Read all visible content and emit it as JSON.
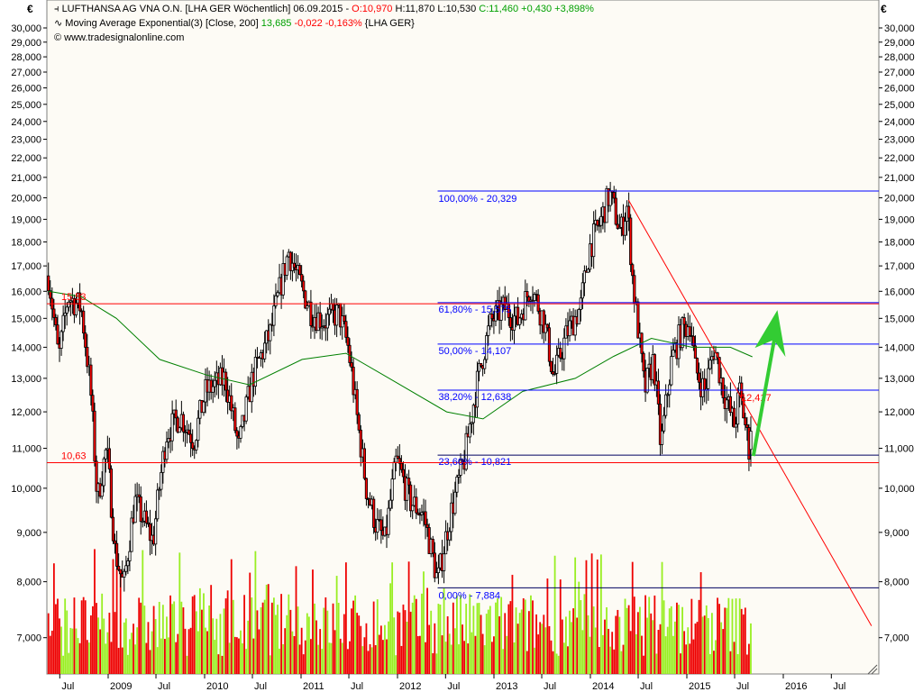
{
  "header": {
    "instrument_line": {
      "icon": "candlestick-icon",
      "name": "LUFTHANSA AG VNA O.N. [LHA GER  Wöchentlich]",
      "date": "06.09.2015 -",
      "open": "O:10,970",
      "high": "H:11,870",
      "low": "L:10,530",
      "close_change": "C:11,460 +0,430 +3,898%"
    },
    "indicator_line": {
      "icon": "wave-icon",
      "name": "Moving Average Exponential(3) [Close, 200]",
      "value": "13,685",
      "change": "-0,022 -0,163%",
      "symbol": "{LHA GER}"
    },
    "copyright": "© www.tradesignalonline.com"
  },
  "currency_symbol": "€",
  "colors": {
    "plot_bg": "#fdfbf5",
    "up_candle": "#ffffff",
    "down_candle": "#ff0000",
    "ema": "#008000",
    "fib": "#0000ff",
    "trend": "#ff0000",
    "arrow": "#33cc33",
    "vol_up": "#99ee22",
    "vol_down": "#ee0000"
  },
  "chart_data": {
    "type": "candlestick",
    "title": "LUFTHANSA AG VNA O.N. [LHA GER  Wöchentlich]",
    "y_scale": "log",
    "ylim": [
      6.3,
      31.5
    ],
    "y_ticks": [
      "30,000",
      "29,000",
      "28,000",
      "27,000",
      "26,000",
      "25,000",
      "24,000",
      "23,000",
      "22,000",
      "21,000",
      "20,000",
      "19,000",
      "18,000",
      "17,000",
      "16,000",
      "15,000",
      "14,000",
      "13,000",
      "12,000",
      "11,000",
      "10,000",
      "9,000",
      "8,000",
      "7,000"
    ],
    "y_tick_values": [
      30,
      29,
      28,
      27,
      26,
      25,
      24,
      23,
      22,
      21,
      20,
      19,
      18,
      17,
      16,
      15,
      14,
      13,
      12,
      11,
      10,
      9,
      8,
      7
    ],
    "x_ticks": [
      {
        "label": "Jul",
        "date": "2008-07-01"
      },
      {
        "label": "2009",
        "date": "2009-01-01"
      },
      {
        "label": "Jul",
        "date": "2009-07-01"
      },
      {
        "label": "2010",
        "date": "2010-01-01"
      },
      {
        "label": "Jul",
        "date": "2010-07-01"
      },
      {
        "label": "2011",
        "date": "2011-01-01"
      },
      {
        "label": "Jul",
        "date": "2011-07-01"
      },
      {
        "label": "2012",
        "date": "2012-01-01"
      },
      {
        "label": "Jul",
        "date": "2012-07-01"
      },
      {
        "label": "2013",
        "date": "2013-01-01"
      },
      {
        "label": "Jul",
        "date": "2013-07-01"
      },
      {
        "label": "2014",
        "date": "2014-01-01"
      },
      {
        "label": "Jul",
        "date": "2014-07-01"
      },
      {
        "label": "2015",
        "date": "2015-01-01"
      },
      {
        "label": "Jul",
        "date": "2015-07-01"
      },
      {
        "label": "2016",
        "date": "2016-01-01"
      },
      {
        "label": "Jul",
        "date": "2016-07-01"
      }
    ],
    "x_range": [
      "2008-05-15",
      "2016-11-30"
    ],
    "approx_weekly_close_path": [
      [
        "2008-05-19",
        16.6
      ],
      [
        "2008-06-27",
        13.6
      ],
      [
        "2008-08-01",
        15.8
      ],
      [
        "2008-09-20",
        15.4
      ],
      [
        "2008-10-25",
        12.7
      ],
      [
        "2008-11-20",
        9.7
      ],
      [
        "2008-12-25",
        11.0
      ],
      [
        "2009-01-27",
        8.6
      ],
      [
        "2009-03-01",
        7.9
      ],
      [
        "2009-04-12",
        9.7
      ],
      [
        "2009-06-20",
        8.8
      ],
      [
        "2009-08-10",
        11.4
      ],
      [
        "2009-10-01",
        11.9
      ],
      [
        "2009-11-22",
        11.2
      ],
      [
        "2010-01-05",
        12.6
      ],
      [
        "2010-03-20",
        13.0
      ],
      [
        "2010-05-10",
        11.0
      ],
      [
        "2010-07-01",
        13.0
      ],
      [
        "2010-09-08",
        14.5
      ],
      [
        "2010-11-15",
        17.6
      ],
      [
        "2010-12-20",
        16.5
      ],
      [
        "2011-02-10",
        15.2
      ],
      [
        "2011-04-01",
        14.9
      ],
      [
        "2011-05-25",
        15.2
      ],
      [
        "2011-06-28",
        14.0
      ],
      [
        "2011-08-05",
        11.6
      ],
      [
        "2011-09-05",
        10.0
      ],
      [
        "2011-10-10",
        9.2
      ],
      [
        "2011-11-15",
        8.8
      ],
      [
        "2011-12-28",
        10.7
      ],
      [
        "2012-02-17",
        9.7
      ],
      [
        "2012-04-08",
        9.4
      ],
      [
        "2012-06-01",
        8.0
      ],
      [
        "2012-07-20",
        9.4
      ],
      [
        "2012-09-10",
        10.7
      ],
      [
        "2012-11-01",
        13.0
      ],
      [
        "2012-12-20",
        14.9
      ],
      [
        "2013-02-10",
        15.4
      ],
      [
        "2013-04-01",
        14.9
      ],
      [
        "2013-05-20",
        16.2
      ],
      [
        "2013-07-10",
        14.9
      ],
      [
        "2013-08-15",
        13.0
      ],
      [
        "2013-10-05",
        14.5
      ],
      [
        "2013-11-25",
        15.4
      ],
      [
        "2013-12-30",
        17.8
      ],
      [
        "2014-02-05",
        18.8
      ],
      [
        "2014-03-15",
        20.2
      ],
      [
        "2014-04-25",
        18.4
      ],
      [
        "2014-05-20",
        19.6
      ],
      [
        "2014-06-12",
        16.2
      ],
      [
        "2014-07-25",
        12.6
      ],
      [
        "2014-08-28",
        13.6
      ],
      [
        "2014-09-25",
        11.0
      ],
      [
        "2014-11-05",
        13.6
      ],
      [
        "2014-12-10",
        14.5
      ],
      [
        "2015-01-15",
        14.9
      ],
      [
        "2015-02-01",
        13.3
      ],
      [
        "2015-03-10",
        12.6
      ],
      [
        "2015-04-15",
        14.0
      ],
      [
        "2015-05-20",
        12.6
      ],
      [
        "2015-07-01",
        11.6
      ],
      [
        "2015-07-20",
        12.6
      ],
      [
        "2015-08-25",
        10.97
      ],
      [
        "2015-09-06",
        11.46
      ]
    ],
    "ema_200": {
      "name": "Moving Average Exponential(3) [Close, 200]",
      "approx_path": [
        [
          "2008-05-19",
          16.0
        ],
        [
          "2008-09-20",
          15.8
        ],
        [
          "2009-02-01",
          15.0
        ],
        [
          "2009-07-15",
          13.6
        ],
        [
          "2010-01-10",
          13.1
        ],
        [
          "2010-06-20",
          12.8
        ],
        [
          "2011-01-05",
          13.6
        ],
        [
          "2011-06-20",
          13.8
        ],
        [
          "2011-12-01",
          13.0
        ],
        [
          "2012-07-05",
          12.0
        ],
        [
          "2012-11-20",
          11.8
        ],
        [
          "2013-04-20",
          12.6
        ],
        [
          "2013-11-05",
          13.0
        ],
        [
          "2014-03-30",
          13.7
        ],
        [
          "2014-08-20",
          14.3
        ],
        [
          "2015-01-20",
          14.0
        ],
        [
          "2015-06-15",
          14.0
        ],
        [
          "2015-09-06",
          13.685
        ]
      ]
    },
    "horizontal_levels": [
      {
        "label": "15,53",
        "value": 15.53,
        "color": "#ff0000"
      },
      {
        "label": "10,63",
        "value": 10.63,
        "color": "#ff0000"
      }
    ],
    "fibonacci": {
      "start_date": "2012-06-01",
      "levels": [
        {
          "label": "100,00% - 20,329",
          "value": 20.329
        },
        {
          "label": "61,80% - 15,575",
          "value": 15.575
        },
        {
          "label": "50,00% - 14,107",
          "value": 14.107
        },
        {
          "label": "38,20% - 12,638",
          "value": 12.638
        },
        {
          "label": "23,60% - 10,821",
          "value": 10.821
        },
        {
          "label": "0,00% - 7,884",
          "value": 7.884
        }
      ]
    },
    "trendline": {
      "from": [
        "2014-05-25",
        19.9
      ],
      "to": [
        "2016-11-30",
        7.2
      ],
      "label": "12,417",
      "label_value": 12.417
    },
    "arrow": {
      "from": [
        "2015-09-10",
        10.8
      ],
      "to": [
        "2015-12-10",
        15.3
      ]
    },
    "volume": {
      "shown": true,
      "axis_labels": false
    }
  }
}
